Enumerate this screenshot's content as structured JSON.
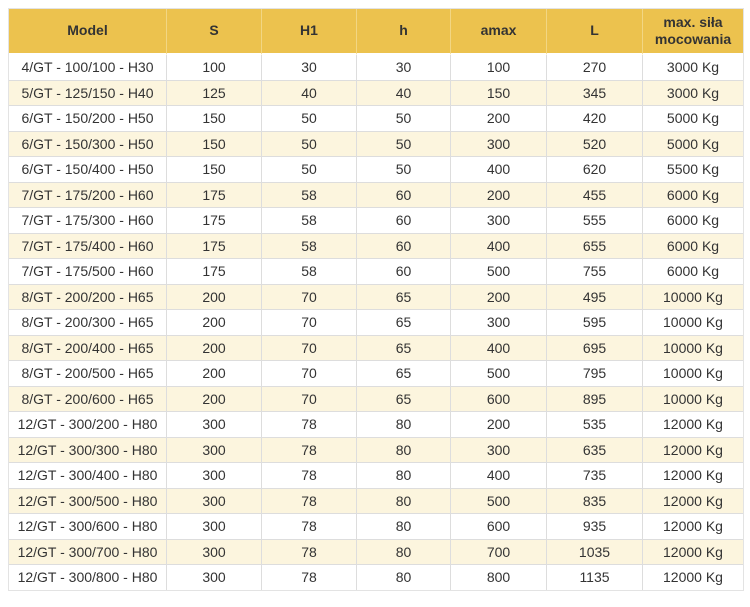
{
  "styles": {
    "header_bg": "#ECC24E",
    "header_divider": "#F2D683",
    "stripe_bg": "#FCF5DE",
    "border_inner": "#DDDDDD",
    "border_outer": "#E3E3E3",
    "text_color": "#333333"
  },
  "chart_data": {
    "type": "table",
    "title": "",
    "columns": [
      "Model",
      "S",
      "H1",
      "h",
      "amax",
      "L",
      "max. siła mocowania"
    ],
    "rows": [
      [
        "4/GT - 100/100 - H30",
        "100",
        "30",
        "30",
        "100",
        "270",
        "3000 Kg"
      ],
      [
        "5/GT - 125/150 - H40",
        "125",
        "40",
        "40",
        "150",
        "345",
        "3000 Kg"
      ],
      [
        "6/GT - 150/200 - H50",
        "150",
        "50",
        "50",
        "200",
        "420",
        "5000 Kg"
      ],
      [
        "6/GT - 150/300 - H50",
        "150",
        "50",
        "50",
        "300",
        "520",
        "5000 Kg"
      ],
      [
        "6/GT - 150/400 - H50",
        "150",
        "50",
        "50",
        "400",
        "620",
        "5500 Kg"
      ],
      [
        "7/GT - 175/200 - H60",
        "175",
        "58",
        "60",
        "200",
        "455",
        "6000 Kg"
      ],
      [
        "7/GT - 175/300 - H60",
        "175",
        "58",
        "60",
        "300",
        "555",
        "6000 Kg"
      ],
      [
        "7/GT - 175/400 - H60",
        "175",
        "58",
        "60",
        "400",
        "655",
        "6000 Kg"
      ],
      [
        "7/GT - 175/500 - H60",
        "175",
        "58",
        "60",
        "500",
        "755",
        "6000 Kg"
      ],
      [
        "8/GT - 200/200 - H65",
        "200",
        "70",
        "65",
        "200",
        "495",
        "10000 Kg"
      ],
      [
        "8/GT - 200/300 - H65",
        "200",
        "70",
        "65",
        "300",
        "595",
        "10000 Kg"
      ],
      [
        "8/GT - 200/400 - H65",
        "200",
        "70",
        "65",
        "400",
        "695",
        "10000 Kg"
      ],
      [
        "8/GT - 200/500 - H65",
        "200",
        "70",
        "65",
        "500",
        "795",
        "10000 Kg"
      ],
      [
        "8/GT - 200/600 - H65",
        "200",
        "70",
        "65",
        "600",
        "895",
        "10000 Kg"
      ],
      [
        "12/GT - 300/200 - H80",
        "300",
        "78",
        "80",
        "200",
        "535",
        "12000 Kg"
      ],
      [
        "12/GT - 300/300 - H80",
        "300",
        "78",
        "80",
        "300",
        "635",
        "12000 Kg"
      ],
      [
        "12/GT - 300/400 - H80",
        "300",
        "78",
        "80",
        "400",
        "735",
        "12000 Kg"
      ],
      [
        "12/GT - 300/500 - H80",
        "300",
        "78",
        "80",
        "500",
        "835",
        "12000 Kg"
      ],
      [
        "12/GT - 300/600 - H80",
        "300",
        "78",
        "80",
        "600",
        "935",
        "12000 Kg"
      ],
      [
        "12/GT - 300/700 - H80",
        "300",
        "78",
        "80",
        "700",
        "1035",
        "12000 Kg"
      ],
      [
        "12/GT - 300/800 - H80",
        "300",
        "78",
        "80",
        "800",
        "1135",
        "12000 Kg"
      ]
    ]
  }
}
